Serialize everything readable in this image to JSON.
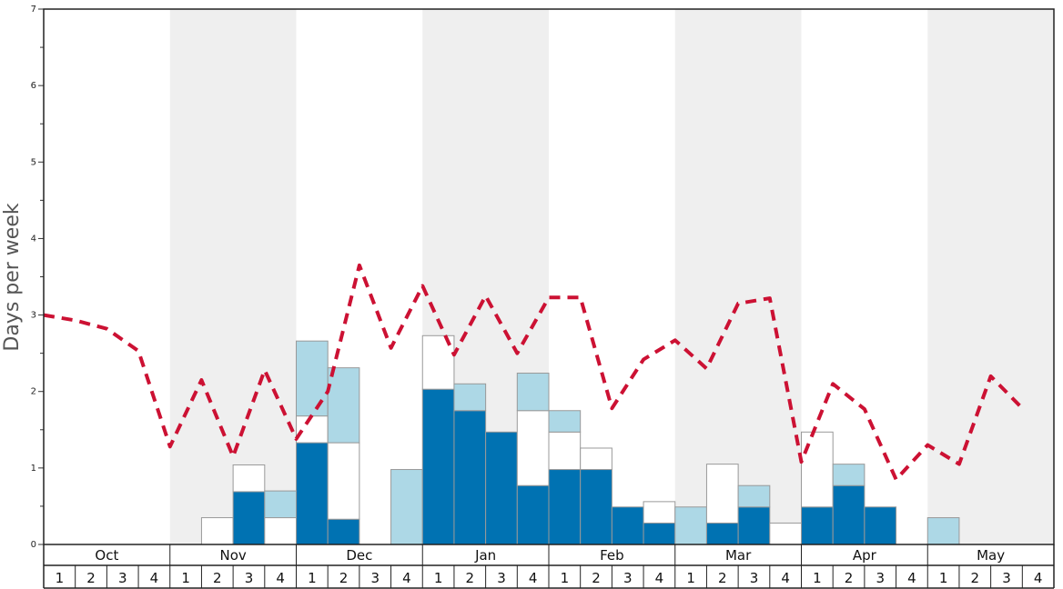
{
  "chart_data": {
    "type": "bar",
    "ylabel": "Days per week",
    "ylim": [
      0,
      7
    ],
    "y_ticks": [
      "0",
      "1",
      "2",
      "3",
      "4",
      "5",
      "6",
      "7"
    ],
    "months": [
      "Oct",
      "Nov",
      "Dec",
      "Jan",
      "Feb",
      "Mar",
      "Apr",
      "May"
    ],
    "week_labels": [
      "1",
      "2",
      "3",
      "4"
    ],
    "stacking": "stacked",
    "colors": {
      "dark_blue": "#0072b2",
      "white": "#ffffff",
      "light_blue": "#add8e6",
      "dashed_line": "#cc1133",
      "band_gray": "#efefef"
    },
    "series": [
      {
        "values": [
          0,
          0,
          0,
          0,
          0,
          0,
          0.69,
          0,
          1.33,
          0.33,
          0,
          0,
          2.03,
          1.75,
          1.47,
          0.77,
          0.98,
          0.98,
          0.49,
          0.28,
          0,
          0.28,
          0.49,
          0,
          0.49,
          0.77,
          0.49,
          0,
          0,
          0,
          0,
          0
        ]
      },
      {
        "values": [
          0,
          0,
          0,
          0,
          0,
          0.35,
          0.35,
          0.35,
          0.35,
          1.0,
          0,
          0,
          0.7,
          0,
          0,
          0.98,
          0.49,
          0.28,
          0,
          0.28,
          0,
          0.77,
          0,
          0.28,
          0.98,
          0,
          0,
          0,
          0,
          0,
          0,
          0
        ]
      },
      {
        "values": [
          0,
          0,
          0,
          0,
          0,
          0,
          0,
          0.35,
          0.98,
          0.98,
          0,
          0.98,
          0,
          0.35,
          0,
          0.49,
          0.28,
          0,
          0,
          0,
          0.49,
          0,
          0.28,
          0,
          0,
          0.28,
          0,
          0,
          0.35,
          0,
          0,
          0
        ]
      },
      {
        "type": "line",
        "style": "dashed",
        "values": [
          3.0,
          2.93,
          2.82,
          2.53,
          1.28,
          2.15,
          1.15,
          2.28,
          1.38,
          2.0,
          3.65,
          2.57,
          3.38,
          2.48,
          3.25,
          2.5,
          3.23,
          3.23,
          1.78,
          2.42,
          2.67,
          2.3,
          3.15,
          3.22,
          1.08,
          2.1,
          1.77,
          0.85,
          1.3,
          1.05,
          2.2,
          1.78
        ]
      }
    ]
  }
}
